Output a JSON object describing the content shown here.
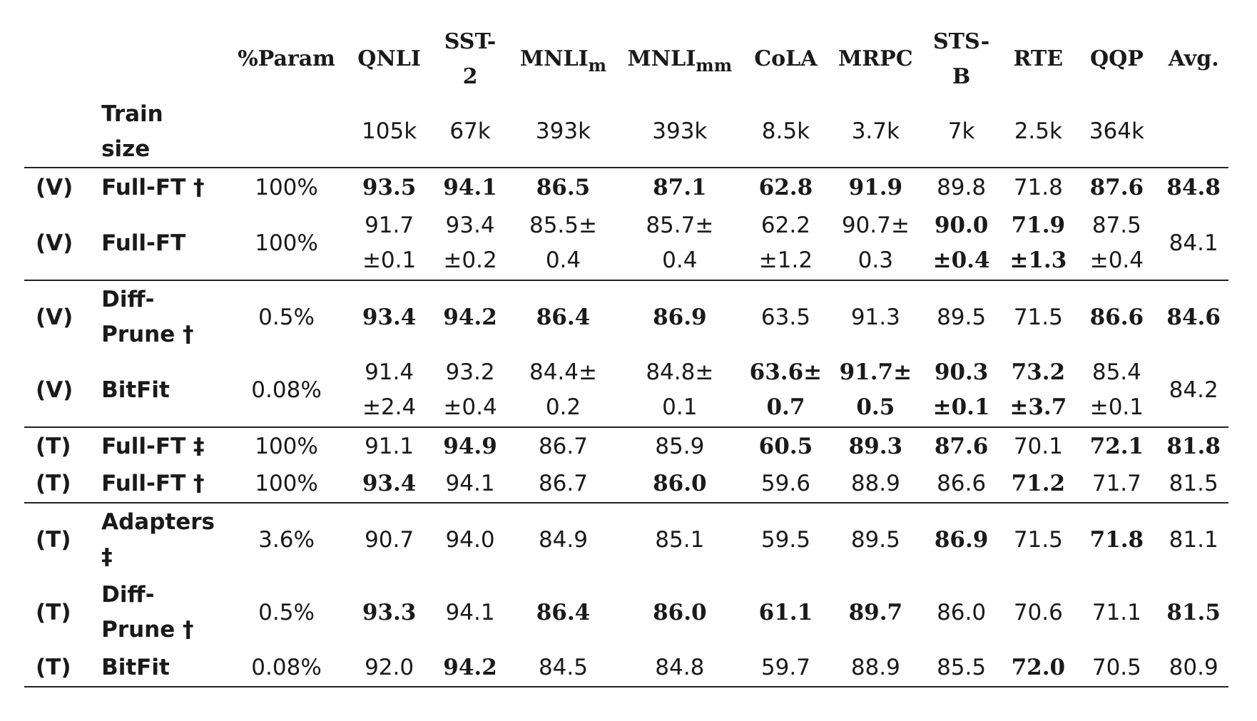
{
  "header": {
    "param": "%Param",
    "qnli": "QNLI",
    "sst2_a": "SST-",
    "sst2_b": "2",
    "mnli_m_base": "MNLI",
    "mnli_m_sub": "m",
    "mnli_mm_base": "MNLI",
    "mnli_mm_sub": "mm",
    "cola": "CoLA",
    "mrpc": "MRPC",
    "stsb_a": "STS-",
    "stsb_b": "B",
    "rte": "RTE",
    "qqp": "QQP",
    "avg": "Avg."
  },
  "train_size": {
    "label_a": "Train",
    "label_b": "size",
    "qnli": "105k",
    "sst2": "67k",
    "mnli_m": "393k",
    "mnli_mm": "393k",
    "cola": "8.5k",
    "mrpc": "3.7k",
    "stsb": "7k",
    "rte": "2.5k",
    "qqp": "364k"
  },
  "rows": [
    {
      "split": "(V)",
      "m1": "Full-FT †",
      "m2": "",
      "param": "100%",
      "c": [
        [
          "93.5",
          ""
        ],
        [
          "94.1",
          ""
        ],
        [
          "86.5",
          ""
        ],
        [
          "87.1",
          ""
        ],
        [
          "62.8",
          ""
        ],
        [
          "91.9",
          ""
        ],
        [
          "89.8",
          ""
        ],
        [
          "71.8",
          ""
        ],
        [
          "87.6",
          ""
        ],
        [
          "84.8",
          ""
        ]
      ]
    },
    {
      "split": "(V)",
      "m1": "Full-FT",
      "m2": "",
      "param": "100%",
      "c": [
        [
          "91.7",
          "±0.1"
        ],
        [
          "93.4",
          "±0.2"
        ],
        [
          "85.5±",
          "0.4"
        ],
        [
          "85.7±",
          "0.4"
        ],
        [
          "62.2",
          "±1.2"
        ],
        [
          "90.7±",
          "0.3"
        ],
        [
          "90.0",
          "±0.4"
        ],
        [
          "71.9",
          "±1.3"
        ],
        [
          "87.5",
          "±0.4"
        ],
        [
          "84.1",
          ""
        ]
      ]
    },
    {
      "split": "(V)",
      "m1": "Diff-",
      "m2": "Prune †",
      "param": "0.5%",
      "c": [
        [
          "93.4",
          ""
        ],
        [
          "94.2",
          ""
        ],
        [
          "86.4",
          ""
        ],
        [
          "86.9",
          ""
        ],
        [
          "63.5",
          ""
        ],
        [
          "91.3",
          ""
        ],
        [
          "89.5",
          ""
        ],
        [
          "71.5",
          ""
        ],
        [
          "86.6",
          ""
        ],
        [
          "84.6",
          ""
        ]
      ]
    },
    {
      "split": "(V)",
      "m1": "BitFit",
      "m2": "",
      "param": "0.08%",
      "c": [
        [
          "91.4",
          "±2.4"
        ],
        [
          "93.2",
          "±0.4"
        ],
        [
          "84.4±",
          "0.2"
        ],
        [
          "84.8±",
          "0.1"
        ],
        [
          "63.6±",
          "0.7"
        ],
        [
          "91.7±",
          "0.5"
        ],
        [
          "90.3",
          "±0.1"
        ],
        [
          "73.2",
          "±3.7"
        ],
        [
          "85.4",
          "±0.1"
        ],
        [
          "84.2",
          ""
        ]
      ]
    },
    {
      "split": "(T)",
      "m1": "Full-FT ‡",
      "m2": "",
      "param": "100%",
      "c": [
        [
          "91.1",
          ""
        ],
        [
          "94.9",
          ""
        ],
        [
          "86.7",
          ""
        ],
        [
          "85.9",
          ""
        ],
        [
          "60.5",
          ""
        ],
        [
          "89.3",
          ""
        ],
        [
          "87.6",
          ""
        ],
        [
          "70.1",
          ""
        ],
        [
          "72.1",
          ""
        ],
        [
          "81.8",
          ""
        ]
      ]
    },
    {
      "split": "(T)",
      "m1": "Full-FT †",
      "m2": "",
      "param": "100%",
      "c": [
        [
          "93.4",
          ""
        ],
        [
          "94.1",
          ""
        ],
        [
          "86.7",
          ""
        ],
        [
          "86.0",
          ""
        ],
        [
          "59.6",
          ""
        ],
        [
          "88.9",
          ""
        ],
        [
          "86.6",
          ""
        ],
        [
          "71.2",
          ""
        ],
        [
          "71.7",
          ""
        ],
        [
          "81.5",
          ""
        ]
      ]
    },
    {
      "split": "(T)",
      "m1": "Adapters",
      "m2": "‡",
      "param": "3.6%",
      "c": [
        [
          "90.7",
          ""
        ],
        [
          "94.0",
          ""
        ],
        [
          "84.9",
          ""
        ],
        [
          "85.1",
          ""
        ],
        [
          "59.5",
          ""
        ],
        [
          "89.5",
          ""
        ],
        [
          "86.9",
          ""
        ],
        [
          "71.5",
          ""
        ],
        [
          "71.8",
          ""
        ],
        [
          "81.1",
          ""
        ]
      ]
    },
    {
      "split": "(T)",
      "m1": "Diff-",
      "m2": "Prune †",
      "param": "0.5%",
      "c": [
        [
          "93.3",
          ""
        ],
        [
          "94.1",
          ""
        ],
        [
          "86.4",
          ""
        ],
        [
          "86.0",
          ""
        ],
        [
          "61.1",
          ""
        ],
        [
          "89.7",
          ""
        ],
        [
          "86.0",
          ""
        ],
        [
          "70.6",
          ""
        ],
        [
          "71.1",
          ""
        ],
        [
          "81.5",
          ""
        ]
      ]
    },
    {
      "split": "(T)",
      "m1": "BitFit",
      "m2": "",
      "param": "0.08%",
      "c": [
        [
          "92.0",
          ""
        ],
        [
          "94.2",
          ""
        ],
        [
          "84.5",
          ""
        ],
        [
          "84.8",
          ""
        ],
        [
          "59.7",
          ""
        ],
        [
          "88.9",
          ""
        ],
        [
          "85.5",
          ""
        ],
        [
          "72.0",
          ""
        ],
        [
          "70.5",
          ""
        ],
        [
          "80.9",
          ""
        ]
      ]
    }
  ]
}
